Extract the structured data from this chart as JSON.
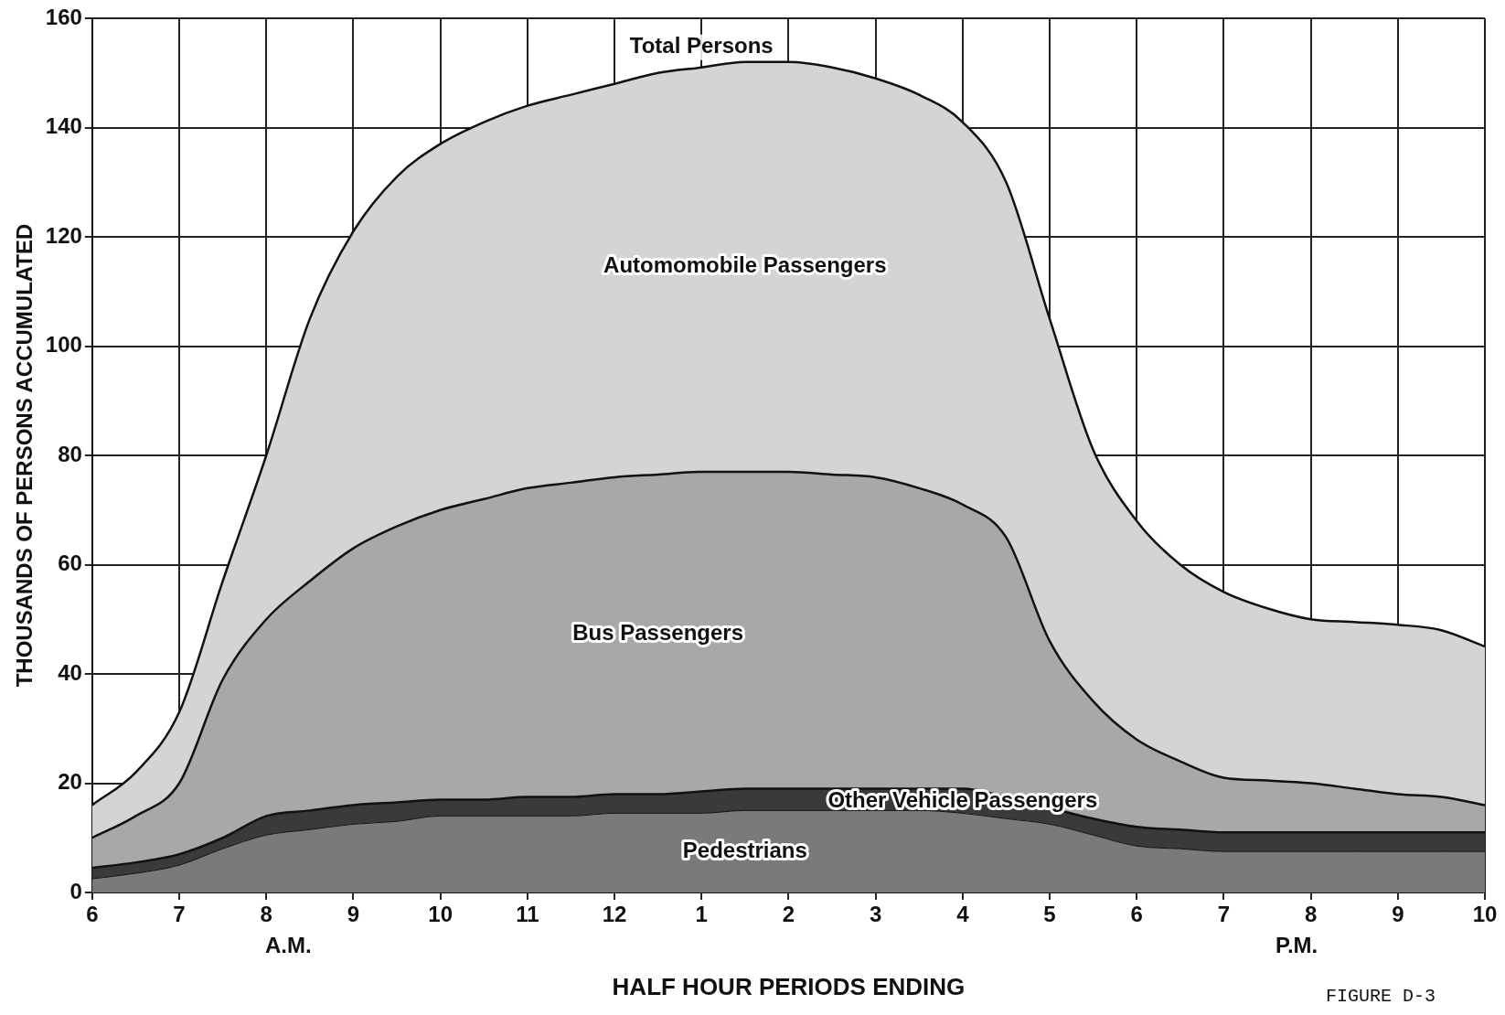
{
  "chart_data": {
    "type": "area",
    "stacked": true,
    "xlabel": "HALF HOUR PERIODS ENDING",
    "ylabel": "THOUSANDS OF PERSONS ACCUMULATED",
    "categories": [
      "6",
      null,
      "7",
      null,
      "8",
      null,
      "9",
      null,
      "10",
      null,
      "11",
      null,
      "12",
      null,
      "1",
      null,
      "2",
      null,
      "3",
      null,
      "4",
      null,
      "5",
      null,
      "6",
      null,
      "7",
      null,
      "8",
      null,
      "9",
      null,
      "10"
    ],
    "series": [
      {
        "name": "Pedestrians",
        "color": "#7a7a7a",
        "values": [
          2.5,
          3.5,
          5,
          8,
          10.5,
          11.5,
          12.5,
          13,
          14,
          14,
          14,
          14,
          14.5,
          14.5,
          14.5,
          15,
          15,
          15,
          15,
          15,
          14.5,
          13.5,
          12.5,
          10.5,
          8.5,
          8,
          7.5,
          7.5,
          7.5,
          7.5,
          7.5,
          7.5,
          7.5
        ]
      },
      {
        "name": "Other Vehicle Passengers",
        "color": "#3a3a3a",
        "values": [
          2,
          2,
          2,
          2,
          3.5,
          3.5,
          3.5,
          3.5,
          3,
          3,
          3.5,
          3.5,
          3.5,
          3.5,
          4,
          4,
          4,
          4,
          4,
          4,
          4.5,
          4,
          3,
          3,
          3.5,
          3.5,
          3.5,
          3.5,
          3.5,
          3.5,
          3.5,
          3.5,
          3.5
        ]
      },
      {
        "name": "Bus Passengers",
        "color": "#a8a8a8",
        "values": [
          5.5,
          8.5,
          13,
          29,
          36,
          42,
          47,
          50.5,
          53,
          55,
          56.5,
          57.5,
          58,
          58.5,
          58.5,
          58,
          58,
          57.5,
          57,
          55,
          52,
          47.5,
          30.5,
          21.5,
          16,
          12.5,
          10,
          9.5,
          9,
          8,
          7,
          6.5,
          5
        ]
      },
      {
        "name": "Automomobile Passengers",
        "color": "#d4d4d4",
        "values": [
          6,
          8,
          13,
          18,
          30,
          48,
          58,
          64,
          67,
          69,
          70,
          71,
          72,
          73.5,
          74,
          75,
          75,
          74.5,
          73,
          72,
          70,
          65,
          59,
          46,
          40,
          36,
          34,
          31.5,
          30,
          30.5,
          31,
          30.5,
          29
        ]
      }
    ],
    "ylim": [
      0,
      160
    ],
    "yticks": [
      0,
      20,
      40,
      60,
      80,
      100,
      120,
      140,
      160
    ],
    "grid": true,
    "legend": false,
    "marker": "none",
    "annotations": [
      {
        "text": "Total Persons",
        "x": "1",
        "y": 151
      },
      "A.M.",
      "P.M.",
      "FIGURE D-3"
    ]
  }
}
